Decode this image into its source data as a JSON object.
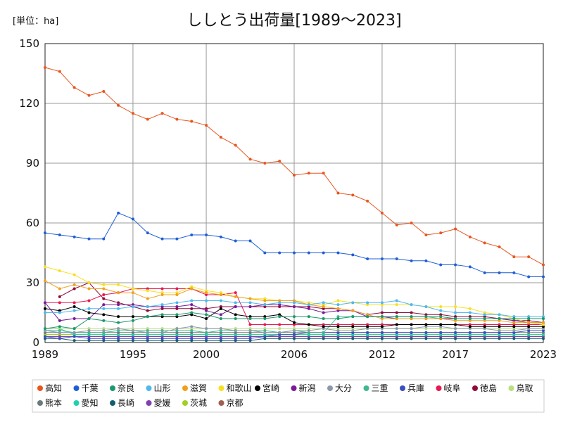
{
  "chart_data": {
    "type": "line",
    "title": "ししとう出荷量[1989～2023]",
    "unit_label": "[単位：ha]",
    "xlabel": "",
    "ylabel": "",
    "x": [
      1989,
      1990,
      1991,
      1992,
      1993,
      1994,
      1995,
      1996,
      1997,
      1998,
      1999,
      2000,
      2001,
      2002,
      2003,
      2004,
      2005,
      2006,
      2007,
      2008,
      2009,
      2010,
      2011,
      2012,
      2013,
      2014,
      2015,
      2016,
      2017,
      2018,
      2019,
      2020,
      2021,
      2022,
      2023
    ],
    "x_ticks": [
      1989,
      1995,
      2000,
      2006,
      2012,
      2017,
      2023
    ],
    "y_ticks": [
      0,
      30,
      60,
      90,
      120,
      150
    ],
    "ylim": [
      0,
      150
    ],
    "grid": true,
    "legend_position": "bottom",
    "series": [
      {
        "name": "高知",
        "color": "#e8561f",
        "values": [
          138,
          136,
          128,
          124,
          126,
          119,
          115,
          112,
          115,
          112,
          111,
          109,
          103,
          99,
          92,
          90,
          91,
          84,
          85,
          85,
          75,
          74,
          71,
          65,
          59,
          60,
          54,
          55,
          57,
          53,
          50,
          48,
          43,
          43,
          39
        ]
      },
      {
        "name": "千葉",
        "color": "#1f5fd6",
        "values": [
          55,
          54,
          53,
          52,
          52,
          65,
          62,
          55,
          52,
          52,
          54,
          54,
          53,
          51,
          51,
          45,
          45,
          45,
          45,
          45,
          45,
          44,
          42,
          42,
          42,
          41,
          41,
          39,
          39,
          38,
          35,
          35,
          35,
          33,
          33
        ]
      },
      {
        "name": "奈良",
        "color": "#1a9a6a",
        "values": [
          7,
          8,
          7,
          12,
          11,
          10,
          11,
          13,
          14,
          14,
          15,
          14,
          12,
          12,
          12,
          12,
          13,
          13,
          13,
          12,
          12,
          13,
          13,
          13,
          13,
          13,
          13,
          13,
          12,
          12,
          12,
          12,
          12,
          12,
          12
        ]
      },
      {
        "name": "山形",
        "color": "#4fb8f0",
        "values": [
          15,
          15,
          16,
          17,
          17,
          17,
          18,
          18,
          19,
          20,
          21,
          21,
          21,
          20,
          20,
          19,
          20,
          20,
          19,
          20,
          19,
          20,
          20,
          20,
          21,
          19,
          18,
          16,
          15,
          15,
          14,
          14,
          13,
          13,
          13
        ]
      },
      {
        "name": "滋賀",
        "color": "#f0a020",
        "values": [
          31,
          27,
          29,
          27,
          27,
          25,
          25,
          22,
          24,
          24,
          27,
          25,
          24,
          23,
          22,
          21,
          21,
          21,
          19,
          18,
          17,
          16,
          14,
          12,
          12,
          12,
          12,
          12,
          11,
          11,
          11,
          11,
          10,
          10,
          10
        ]
      },
      {
        "name": "和歌山",
        "color": "#f8e020",
        "values": [
          38,
          36,
          34,
          30,
          29,
          29,
          27,
          26,
          25,
          25,
          28,
          26,
          25,
          23,
          22,
          22,
          21,
          21,
          20,
          19,
          21,
          20,
          19,
          19,
          19,
          19,
          18,
          18,
          18,
          17,
          15,
          14,
          12,
          10,
          9
        ]
      },
      {
        "name": "宮崎",
        "color": "#000000",
        "values": [
          17,
          16,
          18,
          15,
          14,
          13,
          13,
          13,
          13,
          13,
          14,
          12,
          17,
          14,
          13,
          13,
          14,
          10,
          9,
          8,
          8,
          8,
          8,
          8,
          9,
          9,
          9,
          9,
          9,
          8,
          8,
          8,
          8,
          8,
          8
        ]
      },
      {
        "name": "新潟",
        "color": "#7a1a9a",
        "values": [
          20,
          11,
          12,
          12,
          19,
          19,
          19,
          18,
          18,
          18,
          19,
          16,
          14,
          18,
          18,
          19,
          19,
          18,
          17,
          15,
          16,
          16,
          13,
          13,
          12,
          12,
          12,
          12,
          12,
          12,
          12,
          12,
          11,
          10,
          10
        ]
      },
      {
        "name": "大分",
        "color": "#8a9aaa",
        "values": [
          6,
          5,
          5,
          6,
          6,
          7,
          6,
          5,
          5,
          7,
          8,
          7,
          7,
          6,
          6,
          5,
          5,
          6,
          6,
          7,
          6,
          6,
          7,
          7,
          7,
          7,
          8,
          8,
          7,
          7,
          7,
          6,
          6,
          7,
          7
        ]
      },
      {
        "name": "三重",
        "color": "#40b890",
        "values": [
          6,
          6,
          5,
          5,
          5,
          6,
          6,
          6,
          6,
          6,
          6,
          5,
          6,
          6,
          6,
          6,
          5,
          6,
          5,
          5,
          13,
          13,
          13,
          13,
          13,
          13,
          13,
          12,
          12,
          12,
          12,
          12,
          12,
          12,
          12
        ]
      },
      {
        "name": "兵庫",
        "color": "#3a50c0",
        "values": [
          3,
          2,
          3,
          2,
          2,
          2,
          2,
          2,
          2,
          2,
          2,
          2,
          2,
          2,
          2,
          3,
          4,
          4,
          5,
          5,
          5,
          5,
          5,
          5,
          5,
          5,
          5,
          5,
          5,
          5,
          5,
          5,
          5,
          6,
          6
        ]
      },
      {
        "name": "岐阜",
        "color": "#e81850",
        "values": [
          20,
          20,
          20,
          21,
          24,
          25,
          27,
          27,
          27,
          27,
          27,
          24,
          24,
          25,
          9,
          9,
          9,
          9,
          9,
          9,
          9,
          9,
          9,
          9,
          9,
          9,
          9,
          9,
          9,
          9,
          9,
          9,
          9,
          9,
          9
        ]
      },
      {
        "name": "徳島",
        "color": "#900a3a",
        "values": [
          null,
          23,
          27,
          30,
          22,
          20,
          18,
          16,
          17,
          17,
          17,
          17,
          18,
          18,
          18,
          18,
          18,
          18,
          18,
          17,
          17,
          16,
          14,
          15,
          15,
          15,
          14,
          14,
          13,
          13,
          13,
          12,
          11,
          11,
          10
        ]
      },
      {
        "name": "鳥取",
        "color": "#b8e080",
        "values": [
          7,
          7,
          7,
          7,
          7,
          7,
          7,
          7,
          7,
          7,
          7,
          7,
          7,
          7,
          7,
          7,
          7,
          7,
          7,
          7,
          7,
          7,
          7,
          7,
          7,
          7,
          7,
          7,
          7,
          7,
          7,
          7,
          7,
          7,
          7
        ]
      },
      {
        "name": "熊本",
        "color": "#6a7a7a",
        "values": [
          5,
          5,
          5,
          5,
          5,
          5,
          5,
          5,
          5,
          5,
          5,
          5,
          5,
          5,
          5,
          5,
          5,
          5,
          5,
          5,
          5,
          5,
          5,
          5,
          5,
          5,
          5,
          5,
          5,
          5,
          5,
          5,
          5,
          5,
          5
        ]
      },
      {
        "name": "愛知",
        "color": "#20d0b0",
        "values": [
          7,
          7,
          4,
          4,
          4,
          4,
          4,
          4,
          4,
          4,
          4,
          4,
          4,
          4,
          4,
          4,
          4,
          4,
          4,
          4,
          4,
          4,
          4,
          4,
          4,
          4,
          4,
          4,
          4,
          4,
          4,
          4,
          4,
          4,
          4
        ]
      },
      {
        "name": "長崎",
        "color": "#106070",
        "values": [
          2,
          2,
          1,
          1,
          1,
          1,
          1,
          1,
          1,
          1,
          1,
          1,
          1,
          1,
          1,
          2,
          2,
          2,
          2,
          2,
          2,
          2,
          2,
          2,
          2,
          2,
          2,
          2,
          2,
          2,
          2,
          2,
          2,
          2,
          2
        ]
      },
      {
        "name": "愛媛",
        "color": "#8040b0",
        "values": [
          3,
          3,
          3,
          3,
          3,
          3,
          3,
          3,
          3,
          3,
          3,
          3,
          3,
          3,
          3,
          3,
          3,
          3,
          3,
          3,
          3,
          3,
          3,
          3,
          3,
          3,
          3,
          3,
          3,
          3,
          3,
          3,
          3,
          3,
          3
        ]
      },
      {
        "name": "茨城",
        "color": "#a0d020",
        "values": [
          4,
          4,
          4,
          4,
          4,
          4,
          4,
          4,
          4,
          4,
          4,
          4,
          4,
          4,
          4,
          4,
          4,
          4,
          4,
          4,
          4,
          4,
          4,
          4,
          4,
          4,
          4,
          4,
          4,
          4,
          4,
          4,
          4,
          4,
          4
        ]
      },
      {
        "name": "京都",
        "color": "#a06050",
        "values": [
          4,
          4,
          4,
          4,
          4,
          4,
          4,
          4,
          4,
          4,
          4,
          4,
          4,
          4,
          4,
          4,
          4,
          4,
          4,
          4,
          4,
          4,
          4,
          4,
          4,
          4,
          4,
          4,
          4,
          4,
          4,
          4,
          4,
          4,
          4
        ]
      }
    ]
  }
}
